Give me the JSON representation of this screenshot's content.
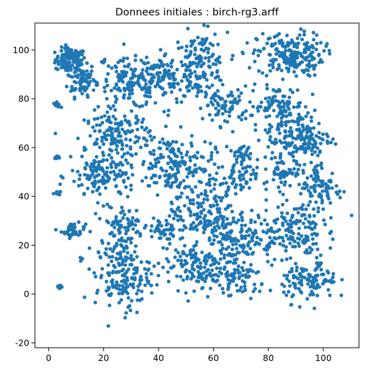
{
  "chart_data": {
    "type": "scatter",
    "title": "Donnees initiales : birch-rg3.arff",
    "xlabel": "",
    "ylabel": "",
    "xlim": [
      -5,
      113
    ],
    "ylim": [
      -22,
      111
    ],
    "xticks": [
      0,
      20,
      40,
      60,
      80,
      100
    ],
    "yticks": [
      -20,
      0,
      20,
      40,
      60,
      80,
      100
    ],
    "grid": false,
    "marker_color": "#1f77b4",
    "series": [
      {
        "clusters": [
          {
            "cx": 8,
            "cy": 96,
            "sx": 2.8,
            "sy": 2.4,
            "n": 110
          },
          {
            "cx": 12,
            "cy": 88,
            "sx": 2.5,
            "sy": 3.5,
            "n": 80
          },
          {
            "cx": 20,
            "cy": 95,
            "sx": 0.5,
            "sy": 0.5,
            "n": 6
          },
          {
            "cx": 3,
            "cy": 77.5,
            "sx": 0.6,
            "sy": 0.5,
            "n": 10
          },
          {
            "cx": 3,
            "cy": 56,
            "sx": 0.5,
            "sy": 0.5,
            "n": 8
          },
          {
            "cx": 3,
            "cy": 41.5,
            "sx": 0.6,
            "sy": 0.5,
            "n": 8
          },
          {
            "cx": 9,
            "cy": 26,
            "sx": 2.2,
            "sy": 1.5,
            "n": 40
          },
          {
            "cx": 12,
            "cy": 14.5,
            "sx": 0.3,
            "sy": 0.3,
            "n": 3
          },
          {
            "cx": 4,
            "cy": 3,
            "sx": 0.6,
            "sy": 0.6,
            "n": 10
          },
          {
            "cx": 98.5,
            "cy": 12,
            "sx": 0.5,
            "sy": 0.5,
            "n": 6
          },
          {
            "cx": 30,
            "cy": 86,
            "sx": 6,
            "sy": 5,
            "n": 150
          },
          {
            "cx": 55,
            "cy": 93,
            "sx": 5,
            "sy": 7,
            "n": 160
          },
          {
            "cx": 43,
            "cy": 89,
            "sx": 5,
            "sy": 5,
            "n": 90
          },
          {
            "cx": 88,
            "cy": 98,
            "sx": 6,
            "sy": 4.5,
            "n": 200
          },
          {
            "cx": 65,
            "cy": 77,
            "sx": 4,
            "sy": 4,
            "n": 70
          },
          {
            "cx": 83,
            "cy": 77,
            "sx": 5,
            "sy": 4,
            "n": 90
          },
          {
            "cx": 25,
            "cy": 65,
            "sx": 6,
            "sy": 5,
            "n": 150
          },
          {
            "cx": 20,
            "cy": 48,
            "sx": 6,
            "sy": 5,
            "n": 130
          },
          {
            "cx": 46,
            "cy": 53,
            "sx": 7,
            "sy": 6,
            "n": 170
          },
          {
            "cx": 68,
            "cy": 47,
            "sx": 4,
            "sy": 4,
            "n": 70
          },
          {
            "cx": 70,
            "cy": 58,
            "sx": 2,
            "sy": 1.5,
            "n": 25
          },
          {
            "cx": 91,
            "cy": 64,
            "sx": 6,
            "sy": 6,
            "n": 170
          },
          {
            "cx": 99,
            "cy": 43,
            "sx": 4,
            "sy": 5,
            "n": 90
          },
          {
            "cx": 86,
            "cy": 50,
            "sx": 3,
            "sy": 3,
            "n": 45
          },
          {
            "cx": 27,
            "cy": 28,
            "sx": 4,
            "sy": 4,
            "n": 70
          },
          {
            "cx": 27,
            "cy": 8,
            "sx": 5,
            "sy": 7,
            "n": 180
          },
          {
            "cx": 52,
            "cy": 12,
            "sx": 6,
            "sy": 5,
            "n": 120
          },
          {
            "cx": 56,
            "cy": 33,
            "sx": 6,
            "sy": 6,
            "n": 160
          },
          {
            "cx": 70,
            "cy": 23,
            "sx": 6,
            "sy": 5,
            "n": 120
          },
          {
            "cx": 88,
            "cy": 26,
            "sx": 6,
            "sy": 6,
            "n": 150
          },
          {
            "cx": 95,
            "cy": 5,
            "sx": 5,
            "sy": 4,
            "n": 110
          },
          {
            "cx": 68,
            "cy": 6,
            "sx": 6,
            "sy": 4,
            "n": 90
          },
          {
            "cx": 42,
            "cy": 25,
            "sx": 3,
            "sy": 3,
            "n": 40
          }
        ]
      }
    ]
  }
}
